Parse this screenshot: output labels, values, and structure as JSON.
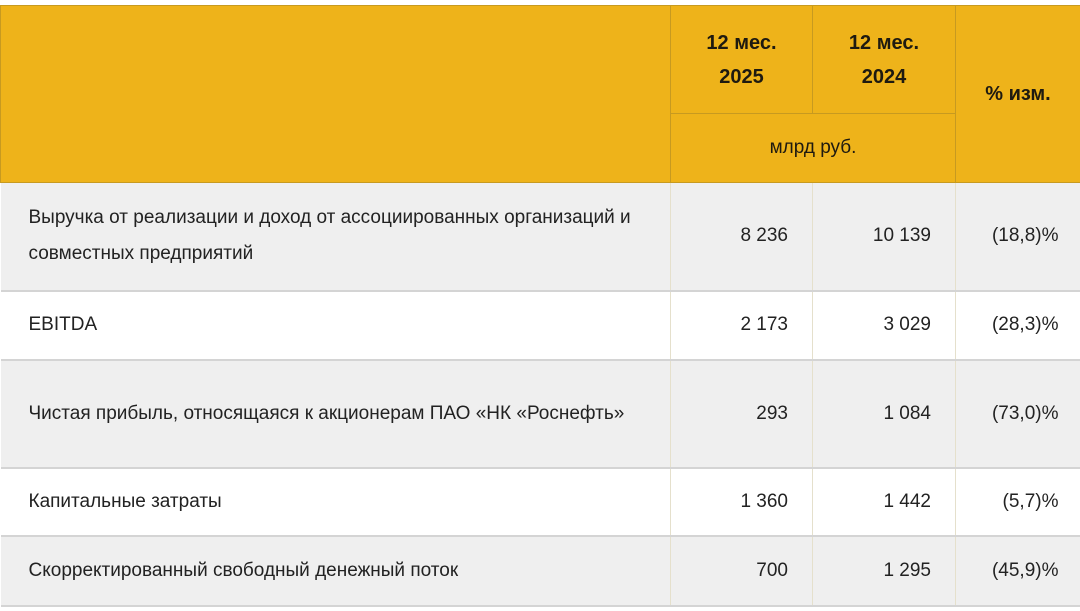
{
  "header": {
    "col_2025": [
      "12 мес.",
      "2025"
    ],
    "col_2024": [
      "12 мес.",
      "2024"
    ],
    "col_change": "% изм.",
    "unit": "млрд руб."
  },
  "rows": [
    {
      "label": "Выручка от реализации и доход от ассоциированных организаций и совместных предприятий",
      "v2025": "8 236",
      "v2024": "10 139",
      "change": "(18,8)%"
    },
    {
      "label": "EBITDA",
      "v2025": "2 173",
      "v2024": "3 029",
      "change": "(28,3)%"
    },
    {
      "label": "Чистая прибыль, относящаяся к акционерам ПАО «НК «Роснефть»",
      "v2025": "293",
      "v2024": "1 084",
      "change": "(73,0)%"
    },
    {
      "label": "Капитальные затраты",
      "v2025": "1 360",
      "v2024": "1 442",
      "change": "(5,7)%"
    },
    {
      "label": "Скорректированный свободный денежный поток",
      "v2025": "700",
      "v2024": "1 295",
      "change": "(45,9)%"
    }
  ],
  "colors": {
    "header_bg": "#eeb31a",
    "row_alt": "#efefef"
  }
}
